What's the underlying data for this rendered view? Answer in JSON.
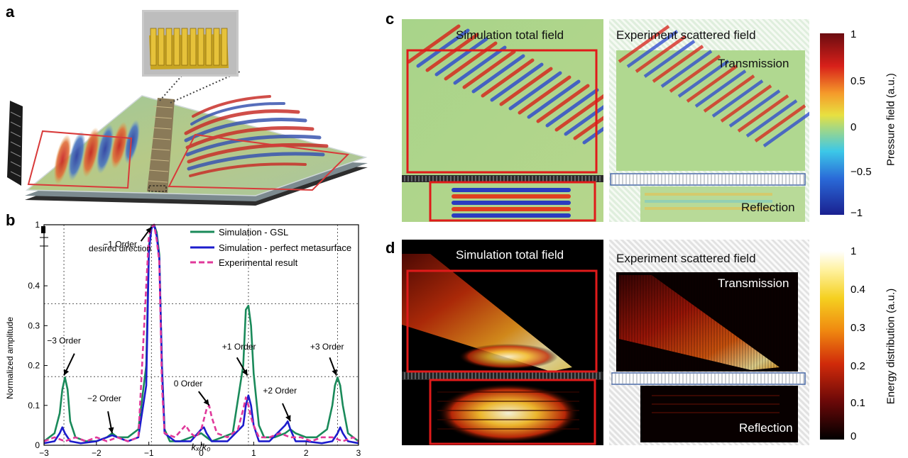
{
  "panel_labels": {
    "a": "a",
    "b": "b",
    "c": "c",
    "d": "d"
  },
  "panel_c": {
    "sim_title": "Simulation total field",
    "exp_title": "Experiment scattered field",
    "transmission": "Transmission",
    "reflection": "Reflection",
    "colorbar_label": "Pressure field (a.u.)",
    "colorbar_ticks": [
      "1",
      "0.5",
      "0",
      "−0.5",
      "−1"
    ]
  },
  "panel_d": {
    "sim_title": "Simulation total field",
    "exp_title": "Experiment scattered field",
    "transmission": "Transmission",
    "reflection": "Reflection",
    "colorbar_label": "Energy distribution (a.u.)",
    "colorbar_ticks": [
      "1",
      "0.4",
      "0.3",
      "0.2",
      "0.1",
      "0"
    ]
  },
  "chart_data": {
    "type": "line",
    "xlabel": "kₓ/k₀",
    "ylabel": "Normalized amplitude",
    "xlim": [
      -3,
      3
    ],
    "ylim": [
      0,
      1
    ],
    "x_ticks": [
      "−3",
      "−2",
      "−1",
      "0",
      "1",
      "2",
      "3"
    ],
    "y_ticks": [
      "0",
      "0.1",
      "0.2",
      "0.3",
      "0.4",
      "1"
    ],
    "axis_break": "between 0.45 and 1",
    "legend_position": "top-right",
    "series": [
      {
        "name": "Simulation - GSL",
        "color": "#1a8a5a",
        "style": "solid",
        "x": [
          -3,
          -2.9,
          -2.8,
          -2.7,
          -2.65,
          -2.6,
          -2.55,
          -2.5,
          -2.4,
          -2.2,
          -2.0,
          -1.8,
          -1.7,
          -1.6,
          -1.4,
          -1.2,
          -1.05,
          -1.0,
          -0.95,
          -0.9,
          -0.85,
          -0.8,
          -0.75,
          -0.7,
          -0.6,
          -0.4,
          -0.2,
          0.0,
          0.1,
          0.2,
          0.4,
          0.6,
          0.8,
          0.85,
          0.9,
          0.95,
          1.0,
          1.1,
          1.2,
          1.4,
          1.6,
          1.7,
          1.8,
          2.0,
          2.2,
          2.4,
          2.5,
          2.55,
          2.6,
          2.65,
          2.7,
          2.8,
          2.9,
          3.0
        ],
        "y": [
          0.01,
          0.02,
          0.03,
          0.08,
          0.14,
          0.17,
          0.14,
          0.06,
          0.02,
          0.01,
          0.01,
          0.02,
          0.03,
          0.02,
          0.02,
          0.04,
          0.2,
          0.7,
          0.98,
          1.0,
          0.9,
          0.6,
          0.2,
          0.04,
          0.01,
          0.01,
          0.02,
          0.03,
          0.02,
          0.01,
          0.02,
          0.03,
          0.2,
          0.34,
          0.35,
          0.3,
          0.18,
          0.05,
          0.02,
          0.02,
          0.03,
          0.04,
          0.03,
          0.02,
          0.02,
          0.04,
          0.1,
          0.15,
          0.17,
          0.15,
          0.1,
          0.03,
          0.02,
          0.01
        ]
      },
      {
        "name": "Simulation - perfect metasurface",
        "color": "#1c1ccc",
        "style": "solid",
        "x": [
          -3,
          -2.8,
          -2.7,
          -2.65,
          -2.6,
          -2.5,
          -2.3,
          -2.0,
          -1.8,
          -1.7,
          -1.6,
          -1.4,
          -1.2,
          -1.05,
          -1.0,
          -0.95,
          -0.9,
          -0.85,
          -0.8,
          -0.75,
          -0.7,
          -0.5,
          -0.2,
          0.0,
          0.05,
          0.1,
          0.2,
          0.5,
          0.8,
          0.85,
          0.9,
          0.95,
          1.0,
          1.1,
          1.3,
          1.6,
          1.65,
          1.7,
          1.8,
          2.0,
          2.3,
          2.5,
          2.6,
          2.65,
          2.7,
          2.8,
          3.0
        ],
        "y": [
          0.005,
          0.01,
          0.03,
          0.045,
          0.03,
          0.01,
          0.005,
          0.01,
          0.02,
          0.025,
          0.02,
          0.01,
          0.02,
          0.15,
          0.65,
          0.95,
          1.0,
          0.85,
          0.55,
          0.2,
          0.03,
          0.01,
          0.01,
          0.04,
          0.045,
          0.03,
          0.01,
          0.01,
          0.05,
          0.1,
          0.125,
          0.1,
          0.05,
          0.01,
          0.01,
          0.05,
          0.06,
          0.04,
          0.01,
          0.01,
          0.005,
          0.01,
          0.03,
          0.045,
          0.03,
          0.01,
          0.005
        ]
      },
      {
        "name": "Experimental result",
        "color": "#e0389a",
        "style": "dashed",
        "x": [
          -3,
          -2.8,
          -2.6,
          -2.4,
          -2.2,
          -2.0,
          -1.8,
          -1.6,
          -1.4,
          -1.2,
          -1.05,
          -1.0,
          -0.95,
          -0.9,
          -0.85,
          -0.8,
          -0.75,
          -0.7,
          -0.5,
          -0.3,
          -0.2,
          -0.1,
          0.0,
          0.1,
          0.15,
          0.2,
          0.3,
          0.5,
          0.7,
          0.8,
          0.85,
          0.9,
          0.95,
          1.0,
          1.1,
          1.3,
          1.5,
          1.7,
          1.9,
          2.1,
          2.3,
          2.5,
          2.7,
          2.9,
          3.0
        ],
        "y": [
          0.01,
          0.02,
          0.01,
          0.02,
          0.01,
          0.02,
          0.01,
          0.02,
          0.01,
          0.02,
          0.4,
          0.85,
          0.97,
          1.0,
          0.8,
          0.5,
          0.15,
          0.03,
          0.02,
          0.05,
          0.03,
          0.02,
          0.04,
          0.09,
          0.1,
          0.07,
          0.03,
          0.02,
          0.04,
          0.09,
          0.12,
          0.1,
          0.07,
          0.05,
          0.02,
          0.02,
          0.03,
          0.02,
          0.02,
          0.01,
          0.02,
          0.02,
          0.01,
          0.02,
          0.01
        ]
      }
    ],
    "annotations": [
      {
        "text": "−1 Order",
        "text2": "desired direction"
      },
      {
        "text": "−3 Order"
      },
      {
        "text": "−2 Order"
      },
      {
        "text": "0 Order"
      },
      {
        "text": "+1 Order"
      },
      {
        "text": "+2 Order"
      },
      {
        "text": "+3 Order"
      }
    ]
  }
}
